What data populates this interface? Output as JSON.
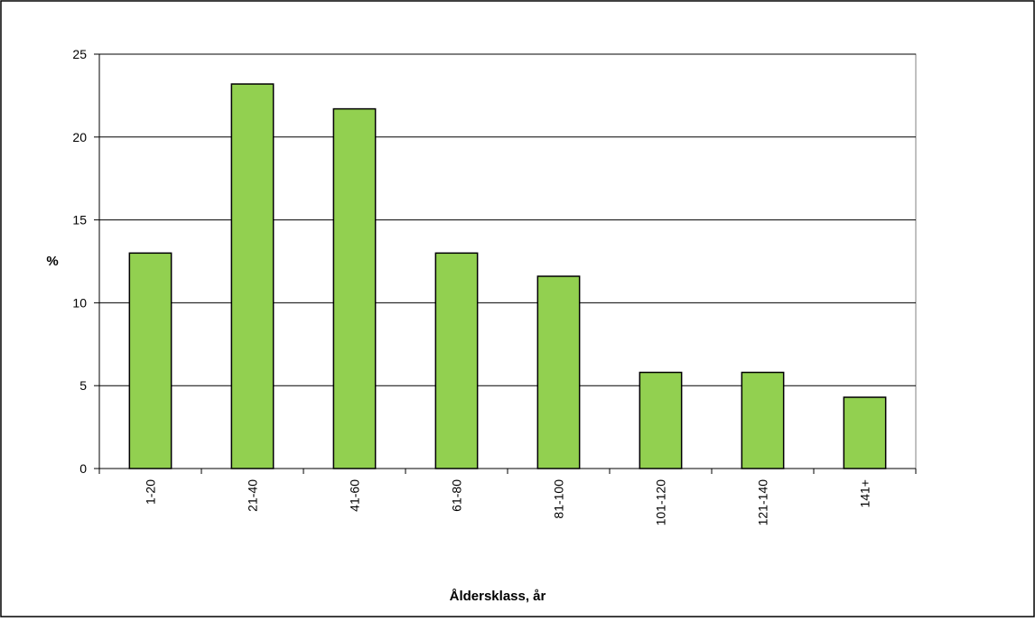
{
  "chart_data": {
    "type": "bar",
    "categories": [
      "1-20",
      "21-40",
      "41-60",
      "61-80",
      "81-100",
      "101-120",
      "121-140",
      "141+"
    ],
    "values": [
      13.0,
      23.2,
      21.7,
      13.0,
      11.6,
      5.8,
      5.8,
      4.3
    ],
    "title": "",
    "xlabel": "Åldersklass,  år",
    "ylabel": "%",
    "ylim": [
      0,
      25
    ],
    "yticks": [
      0,
      5,
      10,
      15,
      20,
      25
    ],
    "grid": true,
    "legend": "none",
    "bar_color": "#92d050"
  }
}
